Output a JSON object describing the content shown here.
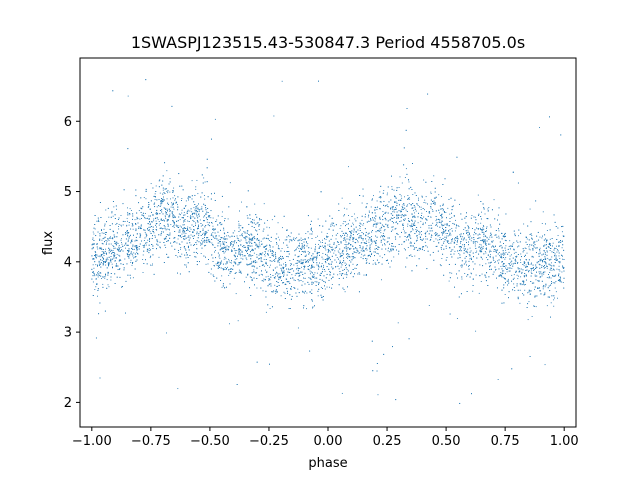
{
  "chart_data": {
    "type": "scatter",
    "title": "1SWASPJ123515.43-530847.3 Period 4558705.0s",
    "xlabel": "phase",
    "ylabel": "flux",
    "xlim": [
      -1.05,
      1.05
    ],
    "ylim": [
      1.65,
      6.9
    ],
    "x_ticks": [
      -1.0,
      -0.75,
      -0.5,
      -0.25,
      0.0,
      0.25,
      0.5,
      0.75,
      1.0
    ],
    "x_tick_labels": [
      "−1.00",
      "−0.75",
      "−0.50",
      "−0.25",
      "0.00",
      "0.25",
      "0.50",
      "0.75",
      "1.00"
    ],
    "y_ticks": [
      2,
      3,
      4,
      5,
      6
    ],
    "y_tick_labels": [
      "2",
      "3",
      "4",
      "5",
      "6"
    ],
    "grid": false,
    "series": [
      {
        "color": "#1f77b4",
        "marker": "point",
        "x_range": [
          -1.0,
          1.0
        ],
        "period_in_phase": 1.0,
        "median_flux_profile": {
          "phase": [
            0.0,
            0.05,
            0.1,
            0.15,
            0.2,
            0.25,
            0.3,
            0.35,
            0.4,
            0.45,
            0.5,
            0.55,
            0.6,
            0.65,
            0.7,
            0.75,
            0.8,
            0.85,
            0.9,
            0.95,
            1.0
          ],
          "flux": [
            4.0,
            4.1,
            4.2,
            4.3,
            4.4,
            4.5,
            4.7,
            4.6,
            4.5,
            4.6,
            4.4,
            4.2,
            4.1,
            4.3,
            4.2,
            4.0,
            3.9,
            3.95,
            4.0,
            3.95,
            4.0
          ]
        },
        "scatter_half_width": 0.45,
        "outlier_range": [
          1.9,
          6.7
        ]
      }
    ]
  }
}
